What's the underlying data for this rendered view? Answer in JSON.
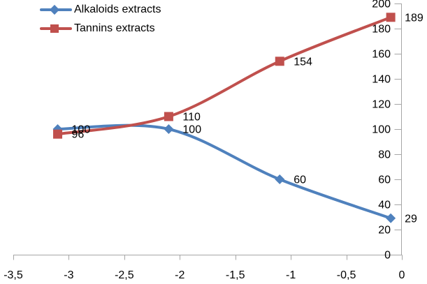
{
  "chart_data": {
    "type": "line",
    "title": "",
    "xlabel": "",
    "ylabel": "",
    "x": [
      -3.1,
      -2.1,
      -1.1,
      -0.1
    ],
    "series": [
      {
        "name": "Alkaloids extracts",
        "color": "#4F81BD",
        "marker": "diamond",
        "values": [
          100,
          100,
          60,
          29
        ],
        "point_labels": [
          "100",
          "100",
          "60",
          "29"
        ]
      },
      {
        "name": "Tannins extracts",
        "color": "#C0504D",
        "marker": "square",
        "values": [
          96,
          110,
          154,
          189
        ],
        "point_labels": [
          "96",
          "110",
          "154",
          "189"
        ]
      }
    ],
    "xlim": [
      -3.5,
      0
    ],
    "ylim": [
      0,
      200
    ],
    "x_ticks": {
      "values": [
        -3.5,
        -3,
        -2.5,
        -2,
        -1.5,
        -1,
        -0.5,
        0
      ],
      "labels": [
        "-3,5",
        "-3",
        "-2,5",
        "-2",
        "-1,5",
        "-1",
        "-0,5",
        "0"
      ]
    },
    "y_ticks": {
      "values": [
        0,
        20,
        40,
        60,
        80,
        100,
        120,
        140,
        160,
        180,
        200
      ],
      "labels": [
        "0",
        "20",
        "40",
        "60",
        "80",
        "100",
        "120",
        "140",
        "160",
        "180",
        "200"
      ]
    },
    "y_axis_side": "right",
    "grid": false,
    "smooth_lines": true,
    "legend_position": "top-left",
    "axis_color": "#A6A6A6",
    "text_color": "#000000",
    "background_color": "#FFFFFF"
  }
}
